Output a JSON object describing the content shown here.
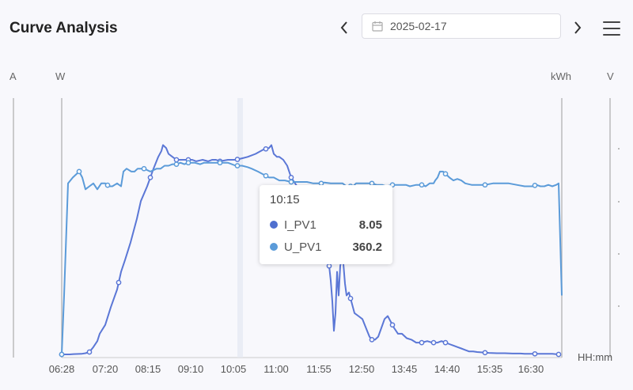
{
  "header": {
    "title": "Curve Analysis",
    "date": "2025-02-17",
    "icons": {
      "prev": "chevron-left-icon",
      "next": "chevron-right-icon",
      "calendar": "calendar-icon",
      "menu": "menu-icon"
    }
  },
  "axes": {
    "left_units": [
      "A",
      "W"
    ],
    "right_units": [
      "kWh",
      "V"
    ],
    "x_unit": "HH:mm",
    "x_ticks": [
      "06:28",
      "07:20",
      "08:15",
      "09:10",
      "10:05",
      "11:00",
      "11:55",
      "12:50",
      "13:45",
      "14:40",
      "15:35",
      "16:30"
    ]
  },
  "colors": {
    "i_pv1": "#5b77d6",
    "u_pv1": "#5b9bd9"
  },
  "tooltip": {
    "time": "10:15",
    "rows": [
      {
        "name": "I_PV1",
        "value": "8.05"
      },
      {
        "name": "U_PV1",
        "value": "360.2"
      }
    ]
  },
  "chart_data": {
    "type": "line",
    "x_ticks": [
      "06:28",
      "07:20",
      "08:15",
      "09:10",
      "10:05",
      "11:00",
      "11:55",
      "12:50",
      "13:45",
      "14:40",
      "15:35",
      "16:30"
    ],
    "series": [
      {
        "name": "I_PV1",
        "points": [
          [
            0,
            0
          ],
          [
            10,
            0
          ],
          [
            15,
            0.1
          ],
          [
            25,
            0.2
          ],
          [
            30,
            0.4
          ],
          [
            35,
            0.8
          ],
          [
            40,
            2.5
          ],
          [
            45,
            4.5
          ],
          [
            48,
            7
          ],
          [
            55,
            10
          ],
          [
            62,
            16
          ],
          [
            70,
            22
          ],
          [
            75,
            28
          ],
          [
            80,
            32
          ],
          [
            87,
            38
          ],
          [
            95,
            46
          ],
          [
            100,
            52
          ],
          [
            108,
            57
          ],
          [
            112,
            60
          ],
          [
            116,
            63
          ],
          [
            122,
            67
          ],
          [
            126,
            69
          ],
          [
            128,
            71
          ],
          [
            132,
            70
          ],
          [
            135,
            68
          ],
          [
            140,
            67
          ],
          [
            145,
            66
          ],
          [
            152,
            66
          ],
          [
            160,
            66
          ],
          [
            165,
            66
          ],
          [
            170,
            65.5
          ],
          [
            178,
            66
          ],
          [
            185,
            65.5
          ],
          [
            190,
            66
          ],
          [
            195,
            66
          ],
          [
            200,
            65.5
          ],
          [
            210,
            66
          ],
          [
            220,
            66
          ],
          [
            228,
            66.5
          ],
          [
            235,
            67
          ],
          [
            245,
            68
          ],
          [
            255,
            69.5
          ],
          [
            262,
            70
          ],
          [
            265,
            71
          ],
          [
            268,
            68
          ],
          [
            272,
            67
          ],
          [
            275,
            67
          ],
          [
            280,
            66
          ],
          [
            285,
            64
          ],
          [
            290,
            60
          ],
          [
            300,
            56
          ],
          [
            305,
            52
          ],
          [
            310,
            49
          ],
          [
            318,
            45
          ],
          [
            325,
            42
          ],
          [
            330,
            38
          ],
          [
            335,
            35
          ],
          [
            338,
            30
          ],
          [
            340,
            25
          ],
          [
            342,
            18
          ],
          [
            344,
            8
          ],
          [
            346,
            14
          ],
          [
            348,
            28
          ],
          [
            350,
            20
          ],
          [
            352,
            30
          ],
          [
            355,
            34
          ],
          [
            358,
            24
          ],
          [
            360,
            20
          ],
          [
            363,
            21
          ],
          [
            366,
            18
          ],
          [
            370,
            14
          ],
          [
            375,
            13
          ],
          [
            380,
            12
          ],
          [
            383,
            10
          ],
          [
            386,
            8
          ],
          [
            389,
            6
          ],
          [
            392,
            5
          ],
          [
            396,
            5
          ],
          [
            400,
            6
          ],
          [
            404,
            9
          ],
          [
            408,
            12
          ],
          [
            412,
            13
          ],
          [
            416,
            11
          ],
          [
            420,
            9
          ],
          [
            425,
            7
          ],
          [
            430,
            7
          ],
          [
            436,
            5.5
          ],
          [
            442,
            5
          ],
          [
            448,
            4
          ],
          [
            455,
            4
          ],
          [
            462,
            4.5
          ],
          [
            468,
            4
          ],
          [
            475,
            4
          ],
          [
            480,
            4.5
          ],
          [
            485,
            4
          ],
          [
            490,
            3.5
          ],
          [
            495,
            3
          ],
          [
            500,
            2.5
          ],
          [
            505,
            2
          ],
          [
            510,
            1.5
          ],
          [
            515,
            1
          ],
          [
            520,
            1
          ],
          [
            525,
            0.8
          ],
          [
            530,
            0.7
          ],
          [
            540,
            0.5
          ],
          [
            550,
            0.4
          ],
          [
            560,
            0.4
          ],
          [
            570,
            0.3
          ],
          [
            580,
            0.3
          ],
          [
            585,
            0.2
          ],
          [
            590,
            0.2
          ],
          [
            600,
            0.2
          ],
          [
            610,
            0.2
          ],
          [
            620,
            0.2
          ],
          [
            628,
            0
          ]
        ],
        "markers": [
          0,
          35,
          72,
          112,
          145,
          160,
          200,
          222,
          258,
          290,
          338,
          365,
          392,
          418,
          455,
          470,
          485,
          535,
          598,
          628
        ]
      },
      {
        "name": "U_PV1",
        "points": [
          [
            0,
            0
          ],
          [
            3,
            20
          ],
          [
            8,
            58
          ],
          [
            14,
            60
          ],
          [
            18,
            61
          ],
          [
            22,
            62
          ],
          [
            26,
            60
          ],
          [
            30,
            56
          ],
          [
            35,
            57
          ],
          [
            40,
            58
          ],
          [
            45,
            56
          ],
          [
            50,
            58
          ],
          [
            55,
            58
          ],
          [
            60,
            57
          ],
          [
            64,
            57
          ],
          [
            70,
            58
          ],
          [
            75,
            57
          ],
          [
            78,
            62
          ],
          [
            82,
            63
          ],
          [
            88,
            62
          ],
          [
            92,
            62
          ],
          [
            96,
            63
          ],
          [
            104,
            63
          ],
          [
            112,
            62
          ],
          [
            120,
            63
          ],
          [
            125,
            63
          ],
          [
            130,
            64
          ],
          [
            135,
            64
          ],
          [
            140,
            64.5
          ],
          [
            145,
            64.5
          ],
          [
            150,
            65
          ],
          [
            155,
            64.5
          ],
          [
            160,
            65
          ],
          [
            168,
            65
          ],
          [
            175,
            64.5
          ],
          [
            180,
            65
          ],
          [
            190,
            65
          ],
          [
            200,
            65
          ],
          [
            210,
            65
          ],
          [
            220,
            64
          ],
          [
            228,
            64
          ],
          [
            235,
            63.5
          ],
          [
            240,
            63
          ],
          [
            248,
            62
          ],
          [
            255,
            61
          ],
          [
            262,
            60
          ],
          [
            268,
            60
          ],
          [
            275,
            59
          ],
          [
            282,
            59
          ],
          [
            290,
            58.5
          ],
          [
            300,
            58.5
          ],
          [
            310,
            58.5
          ],
          [
            318,
            58
          ],
          [
            322,
            58
          ],
          [
            328,
            58
          ],
          [
            332,
            58.3
          ],
          [
            340,
            58
          ],
          [
            344,
            58
          ],
          [
            348,
            58
          ],
          [
            352,
            58
          ],
          [
            355,
            58
          ],
          [
            360,
            57
          ],
          [
            365,
            57
          ],
          [
            368,
            57
          ],
          [
            372,
            58
          ],
          [
            375,
            58
          ],
          [
            382,
            58
          ],
          [
            388,
            58
          ],
          [
            392,
            58
          ],
          [
            398,
            57.5
          ],
          [
            405,
            57.5
          ],
          [
            410,
            57
          ],
          [
            418,
            57.5
          ],
          [
            425,
            57.5
          ],
          [
            430,
            57.5
          ],
          [
            435,
            57.5
          ],
          [
            440,
            57
          ],
          [
            448,
            57.5
          ],
          [
            455,
            57.5
          ],
          [
            460,
            57
          ],
          [
            465,
            58
          ],
          [
            470,
            58
          ],
          [
            472,
            59
          ],
          [
            475,
            60
          ],
          [
            478,
            62
          ],
          [
            482,
            62
          ],
          [
            486,
            61
          ],
          [
            490,
            60
          ],
          [
            495,
            59
          ],
          [
            500,
            59.5
          ],
          [
            505,
            59
          ],
          [
            510,
            58
          ],
          [
            518,
            57.5
          ],
          [
            525,
            57.5
          ],
          [
            535,
            57.5
          ],
          [
            545,
            58
          ],
          [
            555,
            58
          ],
          [
            565,
            58
          ],
          [
            575,
            57.5
          ],
          [
            585,
            57
          ],
          [
            595,
            57
          ],
          [
            600,
            57.5
          ],
          [
            605,
            57
          ],
          [
            610,
            57
          ],
          [
            615,
            57.5
          ],
          [
            620,
            57
          ],
          [
            625,
            57.5
          ],
          [
            628,
            58
          ],
          [
            632,
            20
          ]
        ],
        "markers": [
          0,
          22,
          58,
          104,
          145,
          160,
          200,
          222,
          258,
          290,
          328,
          365,
          392,
          418,
          455,
          485,
          535,
          598
        ]
      }
    ]
  }
}
